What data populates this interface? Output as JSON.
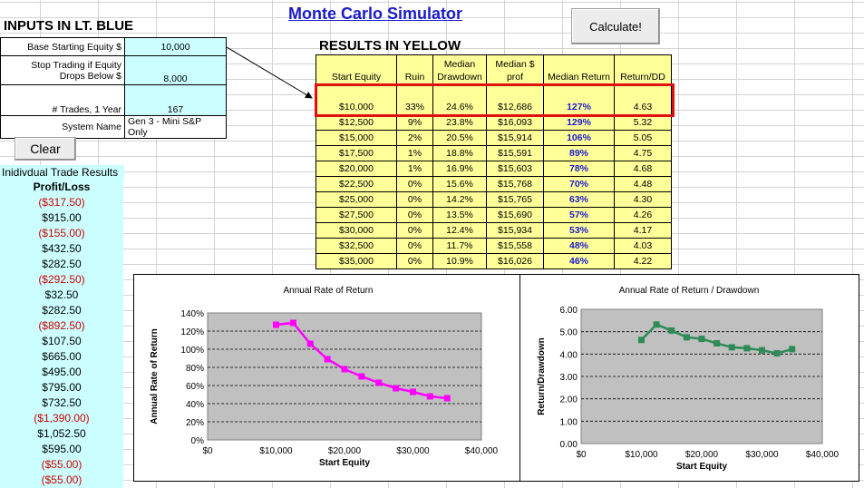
{
  "inputs": {
    "title": "INPUTS IN LT. BLUE",
    "base_equity_label": "Base Starting Equity $",
    "base_equity_value": "10,000",
    "stop_label_1": "Stop Trading if Equity",
    "stop_label_2": "Drops Below $",
    "stop_value": "8,000",
    "trades_label": "# Trades, 1 Year",
    "trades_value": "167",
    "system_label": "System Name",
    "system_value": "Gen 3 - Mini S&P Only"
  },
  "app": {
    "title": "Monte Carlo Simulator",
    "calculate_label": "Calculate!",
    "clear_label": "Clear"
  },
  "results": {
    "title": "RESULTS IN YELLOW",
    "headers": [
      "Start Equity",
      "Ruin",
      "Median Drawdown",
      "Median $ prof",
      "Median Return",
      "Return/DD"
    ],
    "rows": [
      [
        "$10,000",
        "33%",
        "24.6%",
        "$12,686",
        "127%",
        "4.63"
      ],
      [
        "$12,500",
        "9%",
        "23.8%",
        "$16,093",
        "129%",
        "5.32"
      ],
      [
        "$15,000",
        "2%",
        "20.5%",
        "$15,914",
        "106%",
        "5.05"
      ],
      [
        "$17,500",
        "1%",
        "18.8%",
        "$15,591",
        "89%",
        "4.75"
      ],
      [
        "$20,000",
        "1%",
        "16.9%",
        "$15,603",
        "78%",
        "4.68"
      ],
      [
        "$22,500",
        "0%",
        "15.6%",
        "$15,768",
        "70%",
        "4.48"
      ],
      [
        "$25,000",
        "0%",
        "14.2%",
        "$15,765",
        "63%",
        "4.30"
      ],
      [
        "$27,500",
        "0%",
        "13.5%",
        "$15,690",
        "57%",
        "4.26"
      ],
      [
        "$30,000",
        "0%",
        "12.4%",
        "$15,934",
        "53%",
        "4.17"
      ],
      [
        "$32,500",
        "0%",
        "11.7%",
        "$15,558",
        "48%",
        "4.03"
      ],
      [
        "$35,000",
        "0%",
        "10.9%",
        "$16,026",
        "46%",
        "4.22"
      ]
    ]
  },
  "trades": {
    "header": "Inidivdual Trade Results",
    "col_header": "Profit/Loss",
    "values": [
      "($317.50)",
      "$915.00",
      "($155.00)",
      "$432.50",
      "$282.50",
      "($292.50)",
      "$32.50",
      "$282.50",
      "($892.50)",
      "$107.50",
      "$665.00",
      "$495.00",
      "$795.00",
      "$732.50",
      "($1,390.00)",
      "$1,052.50",
      "$595.00",
      "($55.00)",
      "($55.00)"
    ]
  },
  "colors": {
    "input_blue": "#ccffff",
    "result_yellow": "#ffff99",
    "highlight_red": "#e01010",
    "line_magenta": "#ff00ff",
    "line_green": "#2e8b57",
    "plot_bg": "#c0c0c0"
  },
  "chart_data": [
    {
      "type": "line",
      "title": "Annual Rate of Return",
      "xlabel": "Start Equity",
      "ylabel": "Annual Rate of Return",
      "x": [
        10000,
        12500,
        15000,
        17500,
        20000,
        22500,
        25000,
        27500,
        30000,
        32500,
        35000
      ],
      "y": [
        127,
        129,
        106,
        89,
        78,
        70,
        63,
        57,
        53,
        48,
        46
      ],
      "xlim": [
        0,
        40000
      ],
      "ylim": [
        0,
        140
      ],
      "xticks": [
        "$0",
        "$10,000",
        "$20,000",
        "$30,000",
        "$40,000"
      ],
      "yticks": [
        "0%",
        "20%",
        "40%",
        "60%",
        "80%",
        "100%",
        "120%",
        "140%"
      ]
    },
    {
      "type": "line",
      "title": "Annual Rate of Return / Drawdown",
      "xlabel": "Start Equity",
      "ylabel": "Return/Drawdown",
      "x": [
        10000,
        12500,
        15000,
        17500,
        20000,
        22500,
        25000,
        27500,
        30000,
        32500,
        35000
      ],
      "y": [
        4.63,
        5.32,
        5.05,
        4.75,
        4.68,
        4.48,
        4.3,
        4.26,
        4.17,
        4.03,
        4.22
      ],
      "xlim": [
        0,
        40000
      ],
      "ylim": [
        0,
        6
      ],
      "xticks": [
        "$0",
        "$10,000",
        "$20,000",
        "$30,000",
        "$40,000"
      ],
      "yticks": [
        "0.00",
        "1.00",
        "2.00",
        "3.00",
        "4.00",
        "5.00",
        "6.00"
      ]
    }
  ]
}
